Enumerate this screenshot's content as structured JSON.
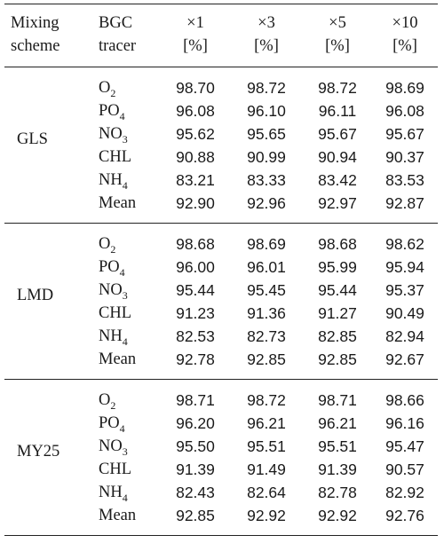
{
  "table": {
    "header": {
      "scheme_line1": "Mixing",
      "scheme_line2": "scheme",
      "tracer_line1": "BGC",
      "tracer_line2": "tracer",
      "cols": [
        {
          "label": "×1",
          "unit": "[%]"
        },
        {
          "label": "×3",
          "unit": "[%]"
        },
        {
          "label": "×5",
          "unit": "[%]"
        },
        {
          "label": "×10",
          "unit": "[%]"
        }
      ]
    },
    "groups": [
      {
        "scheme": "GLS",
        "rows": [
          {
            "tracer": "O",
            "sub": "2",
            "values": [
              "98.70",
              "98.72",
              "98.72",
              "98.69"
            ]
          },
          {
            "tracer": "PO",
            "sub": "4",
            "values": [
              "96.08",
              "96.10",
              "96.11",
              "96.08"
            ]
          },
          {
            "tracer": "NO",
            "sub": "3",
            "values": [
              "95.62",
              "95.65",
              "95.67",
              "95.67"
            ]
          },
          {
            "tracer": "CHL",
            "sub": "",
            "values": [
              "90.88",
              "90.99",
              "90.94",
              "90.37"
            ]
          },
          {
            "tracer": "NH",
            "sub": "4",
            "values": [
              "83.21",
              "83.33",
              "83.42",
              "83.53"
            ]
          },
          {
            "tracer": "Mean",
            "sub": "",
            "values": [
              "92.90",
              "92.96",
              "92.97",
              "92.87"
            ]
          }
        ]
      },
      {
        "scheme": "LMD",
        "rows": [
          {
            "tracer": "O",
            "sub": "2",
            "values": [
              "98.68",
              "98.69",
              "98.68",
              "98.62"
            ]
          },
          {
            "tracer": "PO",
            "sub": "4",
            "values": [
              "96.00",
              "96.01",
              "95.99",
              "95.94"
            ]
          },
          {
            "tracer": "NO",
            "sub": "3",
            "values": [
              "95.44",
              "95.45",
              "95.44",
              "95.37"
            ]
          },
          {
            "tracer": "CHL",
            "sub": "",
            "values": [
              "91.23",
              "91.36",
              "91.27",
              "90.49"
            ]
          },
          {
            "tracer": "NH",
            "sub": "4",
            "values": [
              "82.53",
              "82.73",
              "82.85",
              "82.94"
            ]
          },
          {
            "tracer": "Mean",
            "sub": "",
            "values": [
              "92.78",
              "92.85",
              "92.85",
              "92.67"
            ]
          }
        ]
      },
      {
        "scheme": "MY25",
        "rows": [
          {
            "tracer": "O",
            "sub": "2",
            "values": [
              "98.71",
              "98.72",
              "98.71",
              "98.66"
            ]
          },
          {
            "tracer": "PO",
            "sub": "4",
            "values": [
              "96.20",
              "96.21",
              "96.21",
              "96.16"
            ]
          },
          {
            "tracer": "NO",
            "sub": "3",
            "values": [
              "95.50",
              "95.51",
              "95.51",
              "95.47"
            ]
          },
          {
            "tracer": "CHL",
            "sub": "",
            "values": [
              "91.39",
              "91.49",
              "91.39",
              "90.57"
            ]
          },
          {
            "tracer": "NH",
            "sub": "4",
            "values": [
              "82.43",
              "82.64",
              "82.78",
              "82.92"
            ]
          },
          {
            "tracer": "Mean",
            "sub": "",
            "values": [
              "92.85",
              "92.92",
              "92.92",
              "92.76"
            ]
          }
        ]
      }
    ]
  }
}
